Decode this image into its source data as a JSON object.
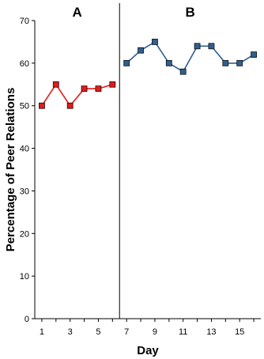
{
  "chart_data": {
    "type": "line",
    "xlabel": "Day",
    "ylabel": "Percentage of Peer Relations",
    "ylim": [
      0,
      70
    ],
    "yticks": [
      "0",
      "10",
      "20",
      "30",
      "40",
      "50",
      "60",
      "70"
    ],
    "xlim": [
      0.5,
      16.5
    ],
    "xticks": [
      "1",
      "3",
      "5",
      "7",
      "9",
      "11",
      "13",
      "15"
    ],
    "grid": false,
    "legend": "none",
    "phase_change_after_day": 6.5,
    "phases": [
      {
        "label": "A",
        "x": [
          1,
          2,
          3,
          4,
          5,
          6
        ],
        "values": [
          50,
          55,
          50,
          54,
          54,
          55
        ],
        "color": "#e11b1b"
      },
      {
        "label": "B",
        "x": [
          7,
          8,
          9,
          10,
          11,
          12,
          13,
          14,
          15,
          16
        ],
        "values": [
          60,
          63,
          65,
          60,
          58,
          64,
          64,
          60,
          60,
          62
        ],
        "color": "#2f5f8f"
      }
    ]
  }
}
